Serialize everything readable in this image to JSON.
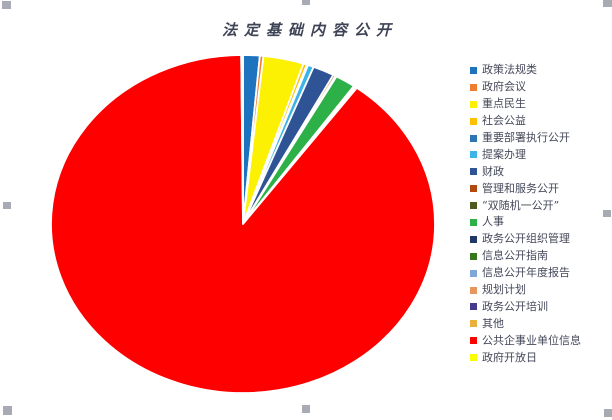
{
  "chart_data": {
    "type": "pie",
    "title": "法定基础内容公开",
    "categories": [
      "政策法规类",
      "政府会议",
      "重点民生",
      "社会公益",
      "重要部署执行公开",
      "提案办理",
      "财政",
      "管理和服务公开",
      "“双随机一公开”",
      "人事",
      "政务公开组织管理",
      "信息公开指南",
      "信息公开年度报告",
      "规划计划",
      "政务公开培训",
      "其他",
      "公共企事业单位信息",
      "政府开放日"
    ],
    "values": [
      1.4,
      0.3,
      3.4,
      0.3,
      0.1,
      0.5,
      1.8,
      0.2,
      0.1,
      1.7,
      0.05,
      0.05,
      0.05,
      0.05,
      0.05,
      0.05,
      89.75,
      0.15
    ],
    "colors": [
      "#1E73BE",
      "#ED7D31",
      "#FCF003",
      "#FFC000",
      "#2E75B6",
      "#3CB4E7",
      "#2F5496",
      "#B04A10",
      "#4E5B1F",
      "#2DB048",
      "#1F3864",
      "#38761D",
      "#7FA8D9",
      "#E8975C",
      "#453A8E",
      "#E9B03C",
      "#FE0000",
      "#F9FF00"
    ],
    "legend_position": "right",
    "start_angle_deg": 0,
    "direction": "clockwise",
    "title_color": "#3E4456",
    "legend_text_color": "#45485A"
  },
  "selection": {
    "handle_color": "#A9ABB4"
  }
}
